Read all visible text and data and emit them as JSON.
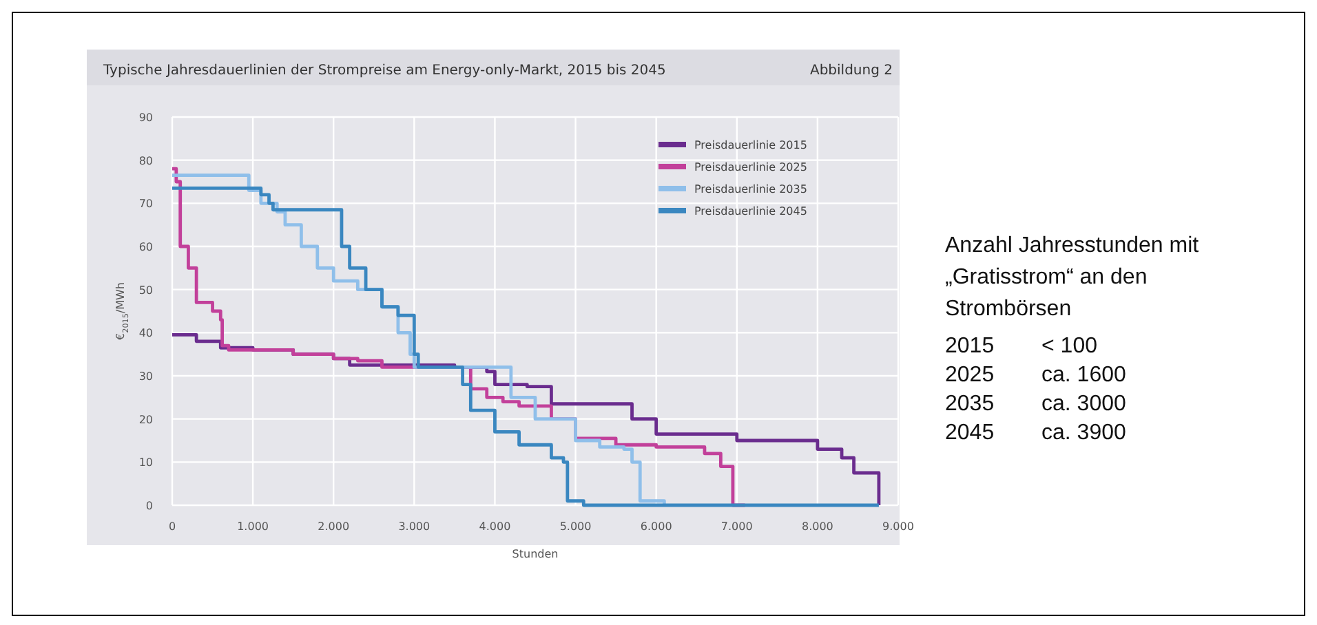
{
  "chart_data": {
    "type": "step",
    "title": "Typische Jahresdauerlinien der Strompreise am Energy-only-Markt, 2015 bis 2045",
    "subtitle": "Abbildung 2",
    "xlabel": "Stunden",
    "ylabel": "€$_{2015}$/MWh",
    "xlim": [
      0,
      9000
    ],
    "ylim": [
      0,
      90
    ],
    "xticks": [
      0,
      {
        "value": 1000,
        "label": "1.000"
      },
      {
        "value": 2000,
        "label": "2.000"
      },
      {
        "value": 3000,
        "label": "3.000"
      },
      {
        "value": 4000,
        "label": "4.000"
      },
      {
        "value": 5000,
        "label": "5.000"
      },
      {
        "value": 6000,
        "label": "6.000"
      },
      {
        "value": 7000,
        "label": "7.000"
      },
      {
        "value": 8000,
        "label": "8.000"
      },
      {
        "value": 9000,
        "label": "9.000"
      }
    ],
    "yticks": [
      0,
      10,
      20,
      30,
      40,
      50,
      60,
      70,
      80,
      90
    ],
    "grid": true,
    "legend": "top right",
    "line_style": "solid",
    "marker": "none",
    "series": [
      {
        "name": "Preisdauerlinie 2015",
        "color": "#6a2c8e",
        "x": [
          0,
          300,
          600,
          1000,
          1500,
          2000,
          2200,
          2500,
          3500,
          3900,
          4000,
          4400,
          4700,
          5100,
          5700,
          6000,
          7000,
          8000,
          8300,
          8450,
          8700,
          8760
        ],
        "values": [
          39.5,
          38,
          36.5,
          36,
          35,
          34,
          32.5,
          32.5,
          32,
          31,
          28,
          27.5,
          23.5,
          23.5,
          20,
          16.5,
          15,
          13,
          11,
          7.5,
          7.5,
          0
        ]
      },
      {
        "name": "Preisdauerlinie 2025",
        "color": "#c2409a",
        "x": [
          0,
          50,
          100,
          200,
          300,
          500,
          600,
          620,
          700,
          1500,
          2000,
          2300,
          2600,
          3500,
          3700,
          3900,
          4100,
          4300,
          4700,
          5000,
          5500,
          6000,
          6600,
          6800,
          6950,
          7100
        ],
        "values": [
          78,
          75,
          60,
          55,
          47,
          45,
          43,
          37,
          36,
          35,
          34,
          33.5,
          32,
          32,
          27,
          25,
          24,
          23,
          20,
          15.5,
          14,
          13.5,
          12,
          9,
          0,
          0
        ]
      },
      {
        "name": "Preisdauerlinie 2035",
        "color": "#8fbfea",
        "x": [
          0,
          900,
          950,
          1100,
          1300,
          1400,
          1600,
          1800,
          2000,
          2300,
          2600,
          2800,
          2950,
          3000,
          4000,
          4200,
          4500,
          5000,
          5300,
          5600,
          5700,
          5800,
          6100
        ],
        "values": [
          76.5,
          76.5,
          73,
          70,
          68,
          65,
          60,
          55,
          52,
          50,
          46,
          40,
          35,
          32,
          32,
          25,
          20,
          15,
          13.5,
          13,
          10,
          1,
          0
        ]
      },
      {
        "name": "Preisdauerlinie 2045",
        "color": "#3a87c0",
        "x": [
          0,
          1050,
          1100,
          1200,
          1250,
          2030,
          2100,
          2200,
          2400,
          2600,
          2800,
          2950,
          3000,
          3050,
          3550,
          3600,
          3700,
          4000,
          4300,
          4700,
          4850,
          4900,
          5100,
          8760
        ],
        "values": [
          73.5,
          73.5,
          72,
          70,
          68.5,
          68.5,
          60,
          55,
          50,
          46,
          44,
          44,
          35,
          32,
          32,
          28,
          22,
          17,
          14,
          11,
          10,
          1,
          0,
          0
        ]
      }
    ],
    "annotations": [
      "Anzahl Jahresstunden mit „Gratisstrom“ an den Strombörsen",
      "2015",
      "< 100",
      "2025",
      "ca. 1600",
      "2035",
      "ca. 3000",
      "2045",
      "ca. 3900"
    ]
  }
}
